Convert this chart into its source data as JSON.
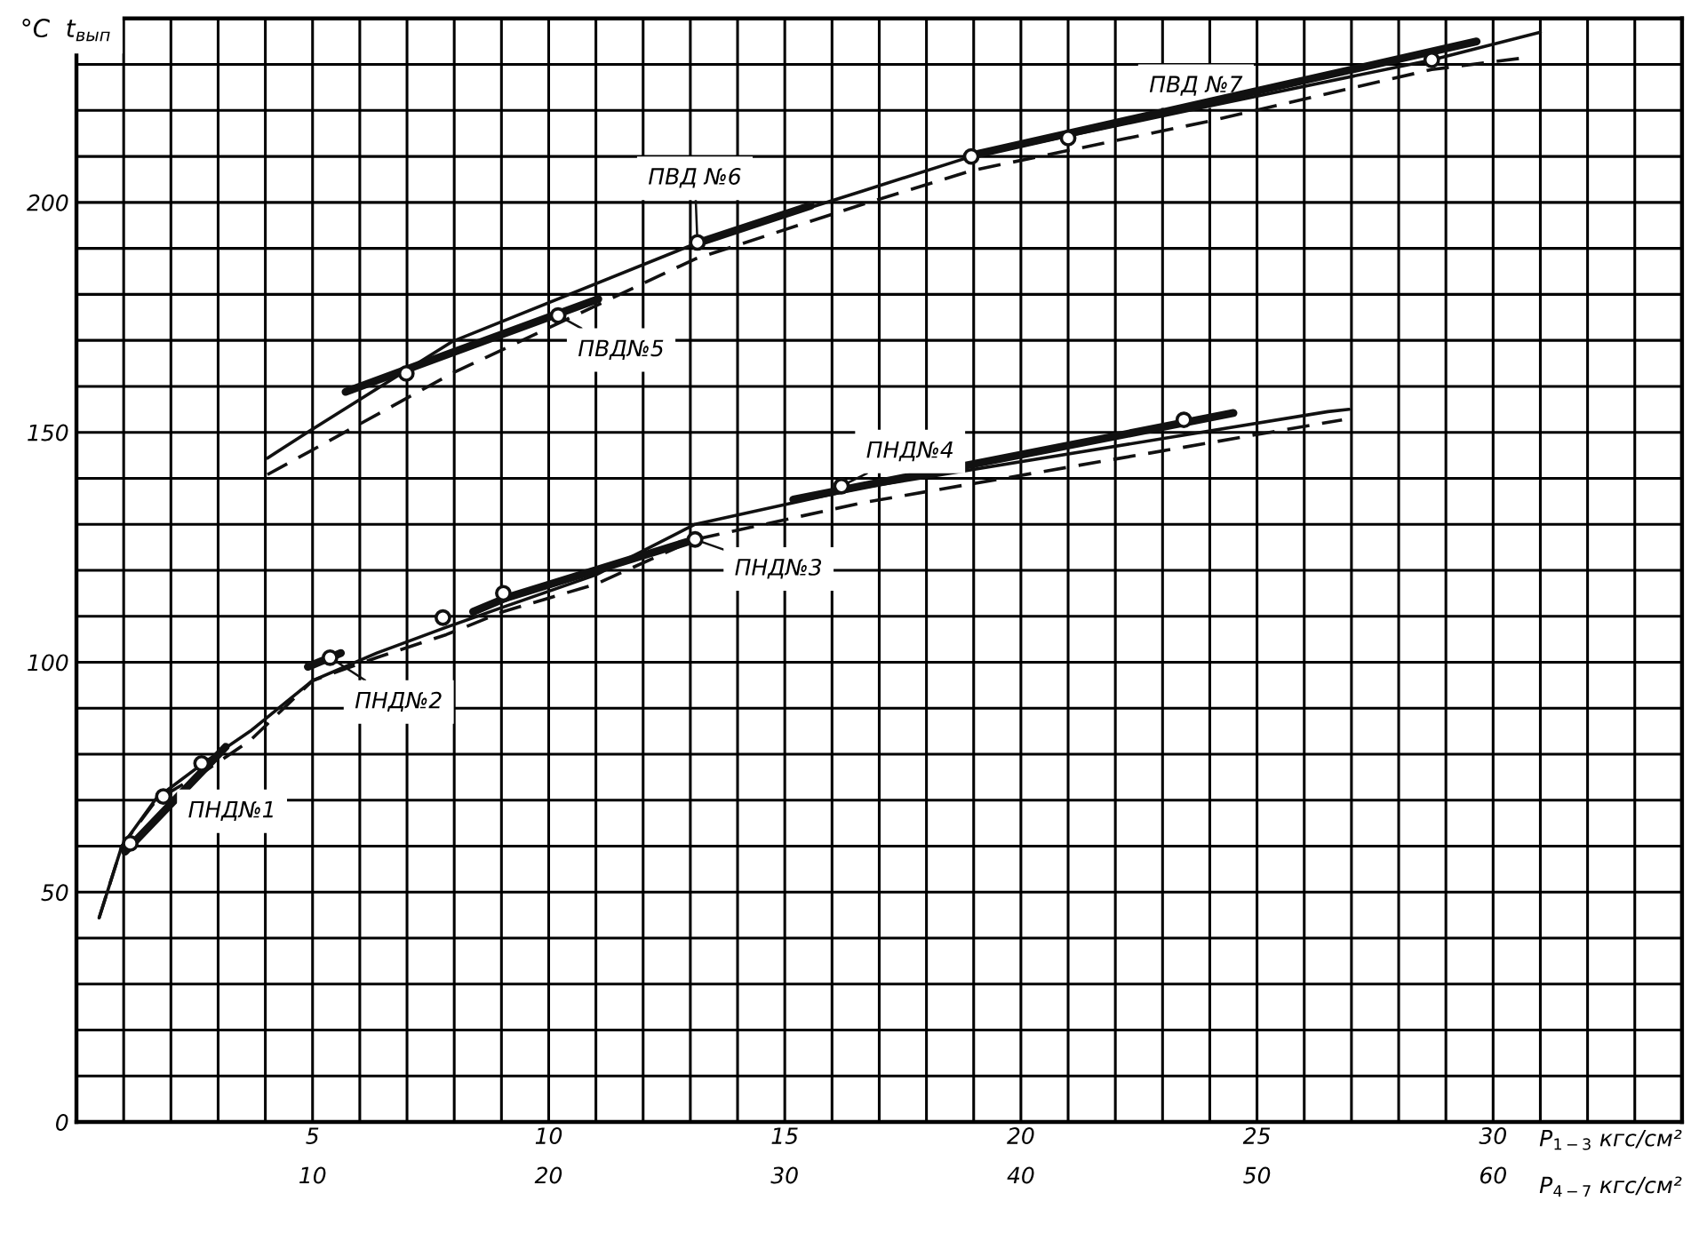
{
  "chart_data": {
    "type": "line",
    "ylabel": "°C  t$_{вып}$",
    "xlabel": "P$_{1−3}$ кгс/см²",
    "x2label": "P$_{4−7}$ кгс/см²",
    "xlim": [
      0,
      34
    ],
    "x2lim": [
      0,
      68
    ],
    "ylim": [
      0,
      240
    ],
    "xticks": [
      {
        "value": 0,
        "label": null
      },
      {
        "value": 1,
        "label": null
      },
      {
        "value": 2,
        "label": null
      },
      {
        "value": 3,
        "label": null
      },
      {
        "value": 4,
        "label": null
      },
      5,
      {
        "value": 6,
        "label": null
      },
      {
        "value": 7,
        "label": null
      },
      {
        "value": 8,
        "label": null
      },
      {
        "value": 9,
        "label": null
      },
      10,
      {
        "value": 11,
        "label": null
      },
      {
        "value": 12,
        "label": null
      },
      {
        "value": 13,
        "label": null
      },
      {
        "value": 14,
        "label": null
      },
      15,
      {
        "value": 16,
        "label": null
      },
      {
        "value": 17,
        "label": null
      },
      {
        "value": 18,
        "label": null
      },
      {
        "value": 19,
        "label": null
      },
      20,
      {
        "value": 21,
        "label": null
      },
      {
        "value": 22,
        "label": null
      },
      {
        "value": 23,
        "label": null
      },
      {
        "value": 24,
        "label": null
      },
      25,
      {
        "value": 26,
        "label": null
      },
      {
        "value": 27,
        "label": null
      },
      {
        "value": 28,
        "label": null
      },
      {
        "value": 29,
        "label": null
      },
      30,
      {
        "value": 31,
        "label": null
      },
      {
        "value": 32,
        "label": null
      },
      {
        "value": 33,
        "label": null
      },
      {
        "value": 34,
        "label": null
      }
    ],
    "x2ticks": [
      10,
      20,
      30,
      40,
      50,
      60
    ],
    "yticks": [
      0,
      {
        "value": 10,
        "label": null
      },
      {
        "value": 20,
        "label": null
      },
      {
        "value": 30,
        "label": null
      },
      {
        "value": 40,
        "label": null
      },
      50,
      {
        "value": 60,
        "label": null
      },
      {
        "value": 70,
        "label": null
      },
      {
        "value": 80,
        "label": null
      },
      {
        "value": 90,
        "label": null
      },
      100,
      {
        "value": 110,
        "label": null
      },
      {
        "value": 120,
        "label": null
      },
      {
        "value": 130,
        "label": null
      },
      {
        "value": 140,
        "label": null
      },
      150,
      {
        "value": 160,
        "label": null
      },
      {
        "value": 170,
        "label": null
      },
      {
        "value": 180,
        "label": null
      },
      {
        "value": 190,
        "label": null
      },
      200,
      {
        "value": 210,
        "label": null
      },
      {
        "value": 220,
        "label": null
      },
      {
        "value": 230,
        "label": null
      },
      {
        "value": 240,
        "label": null
      }
    ],
    "grid": true,
    "series": [
      {
        "color": "#111111",
        "line_style": "solid",
        "x": [
          0.48,
          0.96,
          1.69,
          2.68,
          3.68,
          5.0,
          6.36,
          7.83,
          9.04,
          11.0,
          13.1,
          16.65,
          26.5,
          26.95
        ],
        "values": [
          44.4,
          60,
          70.4,
          78,
          85,
          96,
          102,
          107.6,
          112,
          119,
          130,
          138,
          154.5,
          155
        ]
      },
      {
        "color": "#111111",
        "line_style": "dashed",
        "x": [
          0.48,
          0.96,
          1.69,
          2.68,
          3.68,
          5.0,
          6.36,
          7.83,
          9.04,
          11.0,
          13.1,
          16.65,
          26.8
        ],
        "values": [
          44.4,
          60,
          70,
          76,
          83,
          96,
          101,
          106,
          111,
          117,
          126.7,
          134.7,
          152.7
        ]
      },
      {
        "color": "#111111",
        "line_style": "solid",
        "axis": "x2",
        "x": [
          8.09,
          9.78,
          15.9,
          26.2,
          33.3,
          37.9,
          48,
          57.4,
          62
        ],
        "values": [
          144.4,
          150,
          169.7,
          191,
          202.5,
          210,
          221,
          231,
          237
        ]
      },
      {
        "color": "#111111",
        "line_style": "dashed",
        "axis": "x2",
        "x": [
          8.09,
          15.9,
          26.2,
          33.3,
          37.9,
          48,
          57.4,
          61.25
        ],
        "values": [
          140.8,
          162.8,
          187.7,
          199.6,
          206.9,
          217.7,
          228.9,
          231.4
        ]
      },
      {
        "color": "#111111",
        "x": [
          1.03,
          3.16
        ],
        "values": [
          58.8,
          81.6
        ]
      },
      {
        "color": "#111111",
        "x": [
          4.9,
          5.6
        ],
        "values": [
          99,
          102
        ]
      },
      {
        "color": "#111111",
        "x": [
          8.4,
          9.1
        ],
        "values": [
          111,
          114
        ]
      },
      {
        "color": "#111111",
        "x": [
          9.1,
          13.1
        ],
        "values": [
          114,
          126.7
        ]
      },
      {
        "color": "#111111",
        "x": [
          15.18,
          24.5
        ],
        "values": [
          135.4,
          154.2
        ]
      },
      {
        "color": "#111111",
        "axis": "x2",
        "x": [
          11.4,
          22.1
        ],
        "values": [
          158.8,
          179
        ]
      },
      {
        "color": "#111111",
        "axis": "x2",
        "x": [
          26.2,
          31.1
        ],
        "values": [
          191,
          199.3
        ]
      },
      {
        "color": "#111111",
        "axis": "x2",
        "x": [
          37.7,
          59.3
        ],
        "values": [
          210,
          235
        ]
      },
      {
        "type": "scatter",
        "marker": "circle",
        "color": "#111111",
        "x": [
          1.14,
          1.84,
          2.65,
          5.37,
          7.76,
          9.04,
          13.1,
          16.2,
          23.45
        ],
        "values": [
          60.6,
          70.8,
          78,
          101,
          109.7,
          115,
          126.7,
          138.3,
          152.7
        ]
      },
      {
        "type": "scatter",
        "marker": "circle",
        "color": "#111111",
        "axis": "x2",
        "x": [
          13.97,
          20.4,
          26.3,
          37.9,
          42,
          57.4
        ],
        "values": [
          162.8,
          175.4,
          191.3,
          210,
          214,
          231
        ]
      }
    ],
    "annotations": [
      {
        "text": "ПНД№1",
        "x": 1.84,
        "y": 70.8
      },
      {
        "text": "ПНД№2",
        "x": 5.37,
        "y": 101
      },
      {
        "text": "ПНД№3",
        "x": 13.1,
        "y": 126.7
      },
      {
        "text": "ПНД№4",
        "x": 16.2,
        "y": 138.3
      },
      {
        "text": "ПВД№5",
        "x": 10.2,
        "y": 175.4
      },
      {
        "text": "ПВД №6",
        "x": 13.15,
        "y": 191.3
      },
      {
        "text": "ПВД №7",
        "x": 23.5,
        "y": 221
      }
    ]
  }
}
